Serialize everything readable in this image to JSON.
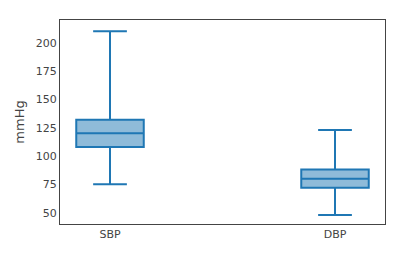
{
  "chart_data": {
    "type": "box",
    "categories": [
      "SBP",
      "DBP"
    ],
    "boxes": [
      {
        "whislo": 75,
        "q1": 108,
        "med": 120,
        "q3": 132,
        "whishi": 210
      },
      {
        "whislo": 48,
        "q1": 72,
        "med": 80,
        "q3": 88,
        "whishi": 123
      }
    ],
    "ylabel": "mmHg",
    "ylim": [
      40,
      220
    ],
    "yticks": [
      50,
      75,
      100,
      125,
      150,
      175,
      200
    ],
    "grid": false
  }
}
